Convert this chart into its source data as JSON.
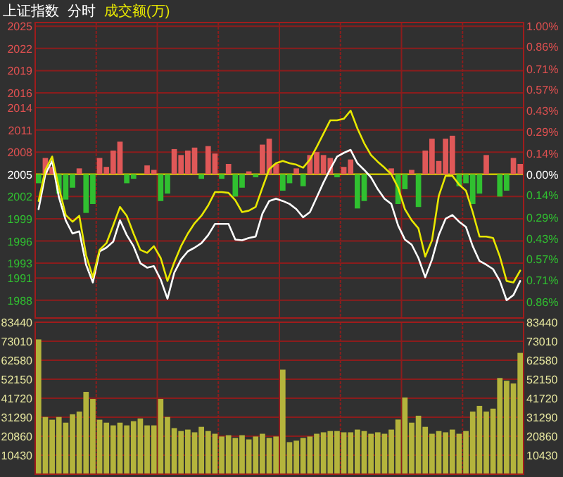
{
  "chart_data": [
    {
      "type": "line",
      "title": "上证指数",
      "subtitle": "分时",
      "annotations": [
        "成交额(万)"
      ],
      "grid": true,
      "categories": [
        null,
        null,
        null,
        null,
        null,
        null,
        null,
        null,
        null,
        null,
        null,
        null,
        null,
        null,
        null,
        null,
        null,
        null,
        null,
        null,
        null,
        null,
        null,
        null,
        null,
        null,
        null,
        null,
        null,
        null,
        null,
        null,
        null,
        null,
        null,
        null,
        null,
        null,
        null,
        null,
        null,
        null,
        null,
        null,
        null,
        null,
        null,
        null,
        null,
        null,
        null,
        null,
        null,
        null,
        null,
        null,
        null,
        null,
        null,
        null,
        null,
        null,
        null,
        null,
        null,
        null,
        null,
        null,
        null,
        null,
        null,
        null
      ],
      "series": [
        {
          "type": "bar",
          "axis": "y2",
          "values": [
            -0.06,
            0.11,
            0.05,
            -0.13,
            -0.17,
            -0.09,
            0.04,
            -0.26,
            -0.2,
            0.11,
            0.05,
            0.16,
            0.22,
            -0.06,
            -0.03,
            null,
            0.06,
            0.03,
            -0.18,
            -0.13,
            0.17,
            0.13,
            0.16,
            0.18,
            -0.03,
            0.19,
            0.14,
            -0.03,
            0.07,
            -0.15,
            -0.09,
            0.02,
            -0.02,
            0.2,
            0.24,
            0.07,
            -0.11,
            -0.06,
            0.04,
            -0.08,
            0.13,
            0.15,
            0.13,
            0.11,
            -0.02,
            0.05,
            0.1,
            -0.23,
            -0.18,
            null,
            null,
            null,
            0.04,
            -0.2,
            -0.1,
            0.03,
            -0.22,
            0.16,
            0.24,
            0.09,
            0.24,
            0.26,
            -0.08,
            -0.06,
            -0.2,
            -0.13,
            0.13,
            null,
            -0.15,
            -0.11,
            0.11,
            0.07
          ],
          "colors": [
            "#30c030",
            "#e05858",
            "#e05858",
            "#30c030",
            "#30c030",
            "#30c030",
            "#e05858",
            "#30c030",
            "#30c030",
            "#e05858",
            "#e05858",
            "#e05858",
            "#e05858",
            "#30c030",
            "#30c030",
            null,
            "#e05858",
            "#e05858",
            "#30c030",
            "#30c030",
            "#e05858",
            "#e05858",
            "#e05858",
            "#e05858",
            "#30c030",
            "#e05858",
            "#e05858",
            "#30c030",
            "#e05858",
            "#30c030",
            "#30c030",
            "#e05858",
            "#30c030",
            "#e05858",
            "#e05858",
            "#e05858",
            "#30c030",
            "#30c030",
            "#e05858",
            "#30c030",
            "#e05858",
            "#e05858",
            "#e05858",
            "#e05858",
            "#30c030",
            "#e05858",
            "#e05858",
            "#30c030",
            "#30c030",
            null,
            null,
            null,
            "#e05858",
            "#30c030",
            "#30c030",
            "#e05858",
            "#30c030",
            "#e05858",
            "#e05858",
            "#e05858",
            "#e05858",
            "#e05858",
            "#30c030",
            "#30c030",
            "#30c030",
            "#30c030",
            "#e05858",
            null,
            "#30c030",
            "#30c030",
            "#e05858",
            "#e05858"
          ]
        },
        {
          "color": "#ffffff",
          "values": [
            2000.3,
            2005.0,
            2006.8,
            2001.9,
            1998.8,
            1997.0,
            1997.3,
            1992.8,
            1990.4,
            1994.6,
            1995.1,
            1995.9,
            1998.8,
            1996.8,
            1995.3,
            1993.0,
            1992.4,
            1992.6,
            1990.8,
            1988.2,
            1991.7,
            1993.5,
            1994.6,
            1995.1,
            1995.7,
            1996.8,
            1998.3,
            1998.3,
            1998.3,
            1996.2,
            1996.1,
            1996.4,
            1996.6,
            1999.7,
            2001.4,
            2001.7,
            2001.4,
            2001.0,
            2000.3,
            1999.2,
            1999.9,
            2001.9,
            2003.9,
            2005.7,
            2007.4,
            2007.9,
            2008.3,
            2006.5,
            2005.6,
            2004.6,
            2003.0,
            2001.7,
            2001.0,
            1998.1,
            1996.2,
            1995.5,
            1993.7,
            1991.1,
            1993.5,
            1996.8,
            1999.0,
            1999.5,
            1998.6,
            1997.9,
            1995.3,
            1993.3,
            1992.8,
            1992.2,
            1990.6,
            1988.0,
            1988.7,
            1990.6
          ]
        },
        {
          "color": "#e8e800",
          "values": [
            2001.4,
            2005.6,
            2007.4,
            2003.2,
            1999.5,
            1998.6,
            1999.4,
            1994.1,
            1991.1,
            1994.8,
            1995.7,
            1998.1,
            2000.6,
            1999.4,
            1997.0,
            1994.8,
            1994.4,
            1995.3,
            1993.7,
            1990.6,
            1993.1,
            1995.3,
            1997.0,
            1998.4,
            1999.4,
            2000.8,
            2002.6,
            2002.6,
            2002.5,
            2001.5,
            1999.9,
            2000.1,
            2000.6,
            2003.2,
            2005.7,
            2006.5,
            2006.8,
            2006.5,
            2006.3,
            2005.9,
            2007.0,
            2008.7,
            2010.5,
            2012.3,
            2012.3,
            2012.5,
            2013.6,
            2011.2,
            2009.2,
            2007.6,
            2006.7,
            2005.9,
            2005.0,
            2003.2,
            2000.3,
            1998.8,
            1997.7,
            1993.9,
            1996.1,
            2002.1,
            2004.8,
            2004.8,
            2003.6,
            2002.8,
            1999.9,
            1996.6,
            1996.6,
            1996.4,
            1993.9,
            1990.6,
            1990.4,
            1992.0
          ]
        }
      ],
      "ylim": [
        1985.6,
        2025.5
      ],
      "yticks": [
        1988,
        1991,
        1993,
        1996,
        1999,
        2002,
        2005,
        2008,
        2011,
        2014,
        2016,
        2019,
        2022,
        2025
      ],
      "y2lim": [
        -0.9676,
        1.0224
      ],
      "y2ticks": [
        {
          "value": -0.86,
          "label": "0.86%"
        },
        {
          "value": -0.71,
          "label": "0.71%"
        },
        {
          "value": -0.57,
          "label": "0.57%"
        },
        {
          "value": -0.43,
          "label": "0.43%"
        },
        {
          "value": -0.29,
          "label": "0.29%"
        },
        {
          "value": -0.14,
          "label": "0.14%"
        },
        {
          "value": 0,
          "label": "0.00%"
        },
        {
          "value": 0.14,
          "label": "0.14%"
        },
        {
          "value": 0.29,
          "label": "0.29%"
        },
        {
          "value": 0.43,
          "label": "0.43%"
        },
        {
          "value": 0.57,
          "label": "0.57%"
        },
        {
          "value": 0.71,
          "label": "0.71%"
        },
        {
          "value": 0.86,
          "label": "0.86%"
        },
        {
          "value": 1.0,
          "label": "1.00%"
        }
      ],
      "ref_lines": [
        {
          "axis": "y2",
          "value": 0,
          "color": "#c8c800"
        }
      ]
    },
    {
      "type": "bar",
      "grid": true,
      "color": "#b4b43c",
      "categories": [
        null,
        null,
        null,
        null,
        null,
        null,
        null,
        null,
        null,
        null,
        null,
        null,
        null,
        null,
        null,
        null,
        null,
        null,
        null,
        null,
        null,
        null,
        null,
        null,
        null,
        null,
        null,
        null,
        null,
        null,
        null,
        null,
        null,
        null,
        null,
        null,
        null,
        null,
        null,
        null,
        null,
        null,
        null,
        null,
        null,
        null,
        null,
        null,
        null,
        null,
        null,
        null,
        null,
        null,
        null,
        null,
        null,
        null,
        null,
        null,
        null,
        null,
        null,
        null,
        null,
        null,
        null,
        null,
        null,
        null,
        null,
        null
      ],
      "values": [
        74000,
        31400,
        29900,
        31400,
        28300,
        32900,
        34400,
        45200,
        41300,
        29900,
        28300,
        26800,
        28300,
        26800,
        29100,
        30600,
        26800,
        26800,
        41300,
        31400,
        25300,
        23700,
        24500,
        23000,
        26000,
        23700,
        22200,
        20700,
        21400,
        19900,
        21400,
        19100,
        20700,
        22200,
        19900,
        20700,
        57400,
        17600,
        18400,
        19900,
        20700,
        22200,
        23000,
        23700,
        23700,
        23000,
        23000,
        24500,
        23700,
        22200,
        23000,
        22200,
        24500,
        30000,
        42100,
        28300,
        32100,
        26000,
        22200,
        23700,
        23000,
        24500,
        22200,
        23700,
        34400,
        37500,
        34400,
        36000,
        52800,
        51300,
        49800,
        66600
      ],
      "ylim": [
        0,
        83440
      ],
      "yticks": [
        10430,
        20860,
        31290,
        41720,
        52150,
        62580,
        73010,
        83440
      ],
      "y2lim": [
        0,
        83440
      ],
      "y2ticks": [
        10430,
        20860,
        31290,
        41720,
        52150,
        62580,
        73010,
        83440
      ]
    }
  ]
}
